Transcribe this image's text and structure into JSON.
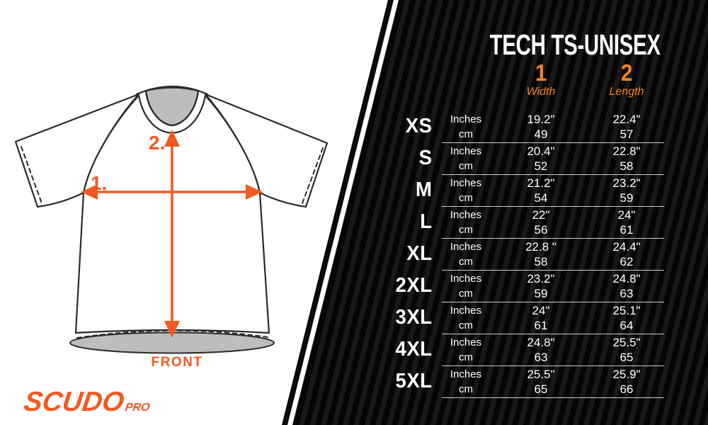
{
  "brand": {
    "name": "SCUDO",
    "suffix": "PRO"
  },
  "diagram": {
    "front_label": "FRONT",
    "width_marker": "1.",
    "length_marker": "2."
  },
  "table": {
    "title": "TECH TS-UNISEX",
    "columns": [
      {
        "num": "1",
        "label": "Width"
      },
      {
        "num": "2",
        "label": "Length"
      }
    ],
    "unit_rows": [
      "Inches",
      "cm"
    ],
    "rows": [
      {
        "size": "XS",
        "width_in": "19.2\"",
        "width_cm": "49",
        "length_in": "22.4\"",
        "length_cm": "57"
      },
      {
        "size": "S",
        "width_in": "20.4\"",
        "width_cm": "52",
        "length_in": "22.8\"",
        "length_cm": "58"
      },
      {
        "size": "M",
        "width_in": "21.2\"",
        "width_cm": "54",
        "length_in": "23.2\"",
        "length_cm": "59"
      },
      {
        "size": "L",
        "width_in": "22\"",
        "width_cm": "56",
        "length_in": "24\"",
        "length_cm": "61"
      },
      {
        "size": "XL",
        "width_in": "22.8 \"",
        "width_cm": "58",
        "length_in": "24.4\"",
        "length_cm": "62"
      },
      {
        "size": "2XL",
        "width_in": "23.2\"",
        "width_cm": "59",
        "length_in": "24.8\"",
        "length_cm": "63"
      },
      {
        "size": "3XL",
        "width_in": "24\"",
        "width_cm": "61",
        "length_in": "25.1\"",
        "length_cm": "64"
      },
      {
        "size": "4XL",
        "width_in": "24.8\"",
        "width_cm": "63",
        "length_in": "25.5\"",
        "length_cm": "65"
      },
      {
        "size": "5XL",
        "width_in": "25.5\"",
        "width_cm": "65",
        "length_in": "25.9\"",
        "length_cm": "66"
      }
    ]
  },
  "colors": {
    "accent_diagram": "#F15A22",
    "accent_table": "#F5821F",
    "panel_black": "#050505",
    "panel_stripe": "#181818",
    "separator": "#cccccc",
    "collar_gray": "#bdbdbd",
    "outline": "#2b2b2b"
  }
}
